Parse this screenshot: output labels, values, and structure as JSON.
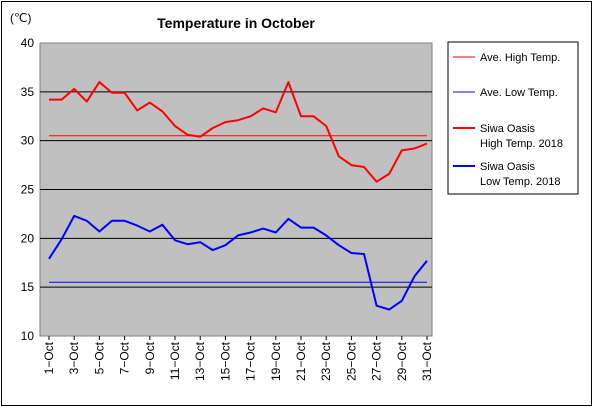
{
  "chart_data": {
    "type": "line",
    "title": "Temperature in October",
    "ylabel": "(℃)",
    "xlabel": "",
    "ylim": [
      10,
      40
    ],
    "y_ticks": [
      10,
      15,
      20,
      25,
      30,
      35,
      40
    ],
    "grid": true,
    "plot_background": "#c0c0c0",
    "legend_position": "right",
    "x": [
      "1-Oct",
      "2-Oct",
      "3-Oct",
      "4-Oct",
      "5-Oct",
      "6-Oct",
      "7-Oct",
      "8-Oct",
      "9-Oct",
      "10-Oct",
      "11-Oct",
      "12-Oct",
      "13-Oct",
      "14-Oct",
      "15-Oct",
      "16-Oct",
      "17-Oct",
      "18-Oct",
      "19-Oct",
      "20-Oct",
      "21-Oct",
      "22-Oct",
      "23-Oct",
      "24-Oct",
      "25-Oct",
      "26-Oct",
      "27-Oct",
      "28-Oct",
      "29-Oct",
      "30-Oct",
      "31-Oct"
    ],
    "x_tick_labels": [
      "1−Oct",
      "3−Oct",
      "5−Oct",
      "7−Oct",
      "9−Oct",
      "11−Oct",
      "13−Oct",
      "15−Oct",
      "17−Oct",
      "19−Oct",
      "21−Oct",
      "23−Oct",
      "25−Oct",
      "27−Oct",
      "29−Oct",
      "31−Oct"
    ],
    "series": [
      {
        "name": "Ave. High Temp.",
        "color": "#ff0000",
        "style": "thin",
        "values": [
          30.5,
          30.5,
          30.5,
          30.5,
          30.5,
          30.5,
          30.5,
          30.5,
          30.5,
          30.5,
          30.5,
          30.5,
          30.5,
          30.5,
          30.5,
          30.5,
          30.5,
          30.5,
          30.5,
          30.5,
          30.5,
          30.5,
          30.5,
          30.5,
          30.5,
          30.5,
          30.5,
          30.5,
          30.5,
          30.5,
          30.5
        ]
      },
      {
        "name": "Ave. Low Temp.",
        "color": "#0000ff",
        "style": "thin",
        "values": [
          15.5,
          15.5,
          15.5,
          15.5,
          15.5,
          15.5,
          15.5,
          15.5,
          15.5,
          15.5,
          15.5,
          15.5,
          15.5,
          15.5,
          15.5,
          15.5,
          15.5,
          15.5,
          15.5,
          15.5,
          15.5,
          15.5,
          15.5,
          15.5,
          15.5,
          15.5,
          15.5,
          15.5,
          15.5,
          15.5,
          15.5
        ]
      },
      {
        "name": "Siwa Oasis\nHigh Temp. 2018",
        "name_lines": [
          "Siwa Oasis",
          "High Temp. 2018"
        ],
        "color": "#ff0000",
        "style": "thick",
        "values": [
          34.2,
          34.2,
          35.3,
          34.0,
          36.0,
          34.9,
          34.9,
          33.1,
          33.9,
          33.0,
          31.5,
          30.6,
          30.4,
          31.3,
          31.9,
          32.1,
          32.5,
          33.3,
          32.9,
          36.0,
          32.5,
          32.5,
          31.5,
          28.4,
          27.5,
          27.3,
          25.8,
          26.6,
          29.0,
          29.2,
          29.7
        ]
      },
      {
        "name": "Siwa Oasis\nLow Temp. 2018",
        "name_lines": [
          "Siwa Oasis",
          "Low Temp. 2018"
        ],
        "color": "#0000ff",
        "style": "thick",
        "values": [
          17.9,
          19.9,
          22.3,
          21.8,
          20.7,
          21.8,
          21.8,
          21.3,
          20.7,
          21.4,
          19.8,
          19.4,
          19.6,
          18.8,
          19.3,
          20.3,
          20.6,
          21.0,
          20.6,
          22.0,
          21.1,
          21.1,
          20.3,
          19.3,
          18.5,
          18.4,
          13.1,
          12.7,
          13.6,
          16.1,
          17.7
        ]
      }
    ]
  }
}
